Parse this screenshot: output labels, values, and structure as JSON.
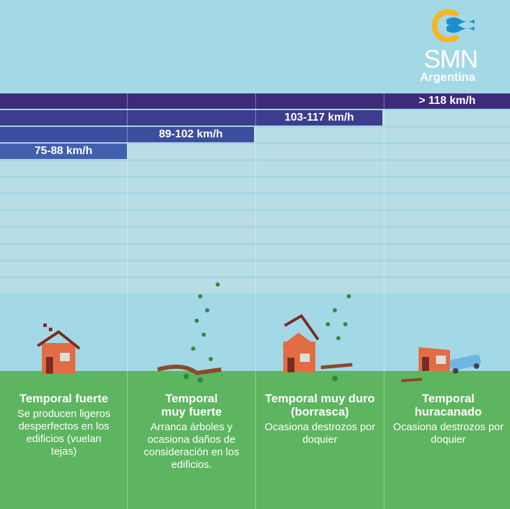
{
  "logo": {
    "name": "SMN",
    "subtitle": "Argentina",
    "icon": "smn-sun-wave-logo"
  },
  "colors": {
    "sky": "#a3d8e6",
    "ground": "#5eb560",
    "bar1": "#3d2a7a",
    "bar2": "#3c3d8f",
    "bar3": "#3e4e9e",
    "bar4": "#4260ae"
  },
  "ranges": [
    {
      "label": "75-88 km/h"
    },
    {
      "label": "89-102 km/h"
    },
    {
      "label": "103-117 km/h"
    },
    {
      "label": "> 118 km/h"
    }
  ],
  "categories": [
    {
      "title": "Temporal fuerte",
      "desc": "Se producen ligeros desperfectos en los edificios (vuelan tejas)"
    },
    {
      "title": "Temporal muy fuerte",
      "desc": "Arranca árboles y ocasiona daños de consideración en los edificios."
    },
    {
      "title": "Temporal muy duro (borrasca)",
      "desc": "Ocasiona destrozos por doquier"
    },
    {
      "title": "Temporal huracanado",
      "desc": "Ocasiona destrozos por doquier"
    }
  ]
}
